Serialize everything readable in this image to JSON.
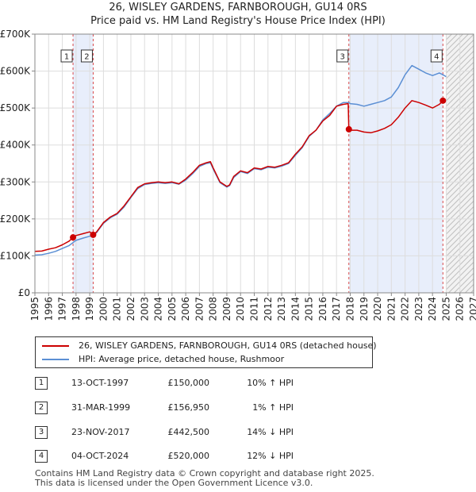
{
  "title_line1": "26, WISLEY GARDENS, FARNBOROUGH, GU14 0RS",
  "title_line2": "Price paid vs. HM Land Registry's House Price Index (HPI)",
  "colors": {
    "property": "#cc0000",
    "hpi": "#5b8fd4",
    "shade": "#e8eefb",
    "grid": "#dddddd"
  },
  "legend": {
    "property_label": "26, WISLEY GARDENS, FARNBOROUGH, GU14 0RS (detached house)",
    "hpi_label": "HPI: Average price, detached house, Rushmoor"
  },
  "transactions": [
    {
      "num": "1",
      "date": "13-OCT-1997",
      "price": "£150,000",
      "hpi": "10% ↑ HPI"
    },
    {
      "num": "2",
      "date": "31-MAR-1999",
      "price": "£156,950",
      "hpi": "1% ↑ HPI"
    },
    {
      "num": "3",
      "date": "23-NOV-2017",
      "price": "£442,500",
      "hpi": "14% ↓ HPI"
    },
    {
      "num": "4",
      "date": "04-OCT-2024",
      "price": "£520,000",
      "hpi": "12% ↓ HPI"
    }
  ],
  "footer_line1": "Contains HM Land Registry data © Crown copyright and database right 2025.",
  "footer_line2": "This data is licensed under the Open Government Licence v3.0.",
  "chart_data": {
    "type": "line",
    "title": "26, WISLEY GARDENS, FARNBOROUGH, GU14 0RS — Price paid vs. HM Land Registry's House Price Index (HPI)",
    "xlim": [
      1995,
      2027
    ],
    "ylim": [
      0,
      700000
    ],
    "x_ticks": [
      1995,
      1996,
      1997,
      1998,
      1999,
      2000,
      2001,
      2002,
      2003,
      2004,
      2005,
      2006,
      2007,
      2008,
      2009,
      2010,
      2011,
      2012,
      2013,
      2014,
      2015,
      2016,
      2017,
      2018,
      2019,
      2020,
      2021,
      2022,
      2023,
      2024,
      2025,
      2026,
      2027
    ],
    "y_ticks": [
      {
        "value": 0,
        "label": "£0"
      },
      {
        "value": 100000,
        "label": "£100K"
      },
      {
        "value": 200000,
        "label": "£200K"
      },
      {
        "value": 300000,
        "label": "£300K"
      },
      {
        "value": 400000,
        "label": "£400K"
      },
      {
        "value": 500000,
        "label": "£500K"
      },
      {
        "value": 600000,
        "label": "£600K"
      },
      {
        "value": 700000,
        "label": "£700K"
      }
    ],
    "hatch_from": 2025.0,
    "shaded_periods": [
      [
        1997.78,
        1999.25
      ],
      [
        2017.9,
        2024.76
      ]
    ],
    "sales": [
      {
        "label": "1",
        "x": 1997.78,
        "y": 150000
      },
      {
        "label": "2",
        "x": 1999.25,
        "y": 156950
      },
      {
        "label": "3",
        "x": 2017.9,
        "y": 442500
      },
      {
        "label": "4",
        "x": 2024.76,
        "y": 520000
      }
    ],
    "series": [
      {
        "name": "26, WISLEY GARDENS, FARNBOROUGH, GU14 0RS (detached house)",
        "x": [
          1995.0,
          1995.5,
          1996.0,
          1996.5,
          1997.0,
          1997.5,
          1997.78,
          1998.0,
          1998.5,
          1999.0,
          1999.25,
          1999.5,
          2000.0,
          2000.5,
          2001.0,
          2001.5,
          2002.0,
          2002.5,
          2003.0,
          2003.5,
          2004.0,
          2004.5,
          2005.0,
          2005.5,
          2006.0,
          2006.5,
          2007.0,
          2007.5,
          2007.8,
          2008.0,
          2008.5,
          2009.0,
          2009.2,
          2009.5,
          2010.0,
          2010.5,
          2011.0,
          2011.5,
          2012.0,
          2012.5,
          2013.0,
          2013.5,
          2014.0,
          2014.5,
          2015.0,
          2015.5,
          2016.0,
          2016.5,
          2017.0,
          2017.5,
          2017.85,
          2017.9,
          2018.0,
          2018.5,
          2019.0,
          2019.5,
          2020.0,
          2020.5,
          2021.0,
          2021.5,
          2022.0,
          2022.5,
          2023.0,
          2023.5,
          2024.0,
          2024.5,
          2024.76,
          2024.9
        ],
        "values": [
          112000,
          113000,
          118000,
          122000,
          130000,
          140000,
          150000,
          155000,
          160000,
          165000,
          156950,
          165000,
          190000,
          205000,
          215000,
          235000,
          260000,
          285000,
          295000,
          298000,
          300000,
          298000,
          300000,
          295000,
          308000,
          325000,
          345000,
          352000,
          355000,
          338000,
          300000,
          288000,
          292000,
          315000,
          330000,
          325000,
          338000,
          335000,
          342000,
          340000,
          345000,
          352000,
          375000,
          395000,
          425000,
          440000,
          465000,
          480000,
          505000,
          510000,
          512000,
          442500,
          440000,
          440000,
          435000,
          433000,
          438000,
          445000,
          455000,
          475000,
          500000,
          520000,
          515000,
          508000,
          500000,
          510000,
          520000,
          515000
        ]
      },
      {
        "name": "HPI: Average price, detached house, Rushmoor",
        "x": [
          1995.0,
          1995.5,
          1996.0,
          1996.5,
          1997.0,
          1997.5,
          1997.78,
          1998.0,
          1998.5,
          1999.0,
          1999.25,
          1999.5,
          2000.0,
          2000.5,
          2001.0,
          2001.5,
          2002.0,
          2002.5,
          2003.0,
          2003.5,
          2004.0,
          2004.5,
          2005.0,
          2005.5,
          2006.0,
          2006.5,
          2007.0,
          2007.5,
          2007.8,
          2008.0,
          2008.5,
          2009.0,
          2009.2,
          2009.5,
          2010.0,
          2010.5,
          2011.0,
          2011.5,
          2012.0,
          2012.5,
          2013.0,
          2013.5,
          2014.0,
          2014.5,
          2015.0,
          2015.5,
          2016.0,
          2016.5,
          2017.0,
          2017.5,
          2017.9,
          2018.0,
          2018.5,
          2019.0,
          2019.5,
          2020.0,
          2020.5,
          2021.0,
          2021.5,
          2022.0,
          2022.5,
          2023.0,
          2023.5,
          2024.0,
          2024.5,
          2024.76,
          2025.0
        ],
        "values": [
          102000,
          103000,
          107000,
          112000,
          120000,
          128000,
          136000,
          142000,
          148000,
          153000,
          155000,
          163000,
          188000,
          203000,
          213000,
          232000,
          258000,
          282000,
          293000,
          296000,
          298000,
          296000,
          298000,
          294000,
          305000,
          322000,
          342000,
          350000,
          352000,
          335000,
          298000,
          286000,
          290000,
          312000,
          328000,
          323000,
          336000,
          333000,
          340000,
          338000,
          343000,
          350000,
          372000,
          393000,
          423000,
          440000,
          468000,
          485000,
          505000,
          515000,
          515000,
          512000,
          510000,
          505000,
          510000,
          515000,
          520000,
          530000,
          555000,
          590000,
          615000,
          605000,
          595000,
          588000,
          595000,
          590000,
          585000
        ]
      }
    ]
  }
}
